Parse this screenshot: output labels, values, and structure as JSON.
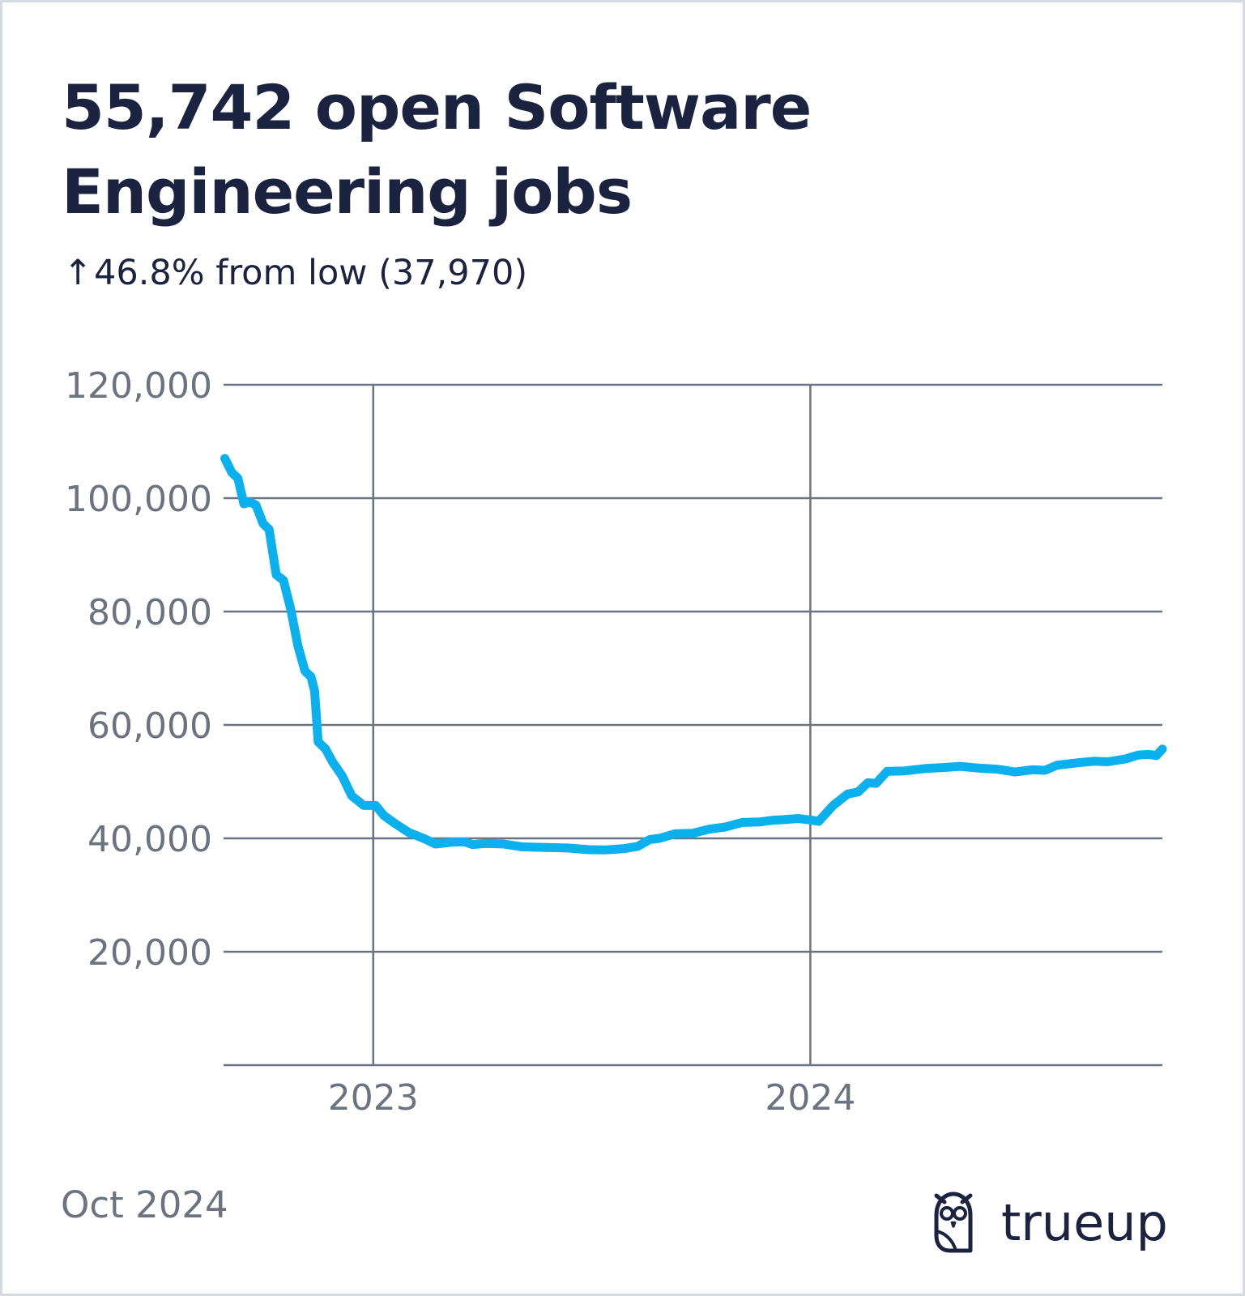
{
  "header": {
    "title": "55,742 open Software Engineering jobs",
    "subtitle_arrow": "↑",
    "subtitle": "46.8% from low (37,970)"
  },
  "footer": {
    "date": "Oct 2024",
    "brand": "trueup",
    "brand_icon": "owl-logo-icon"
  },
  "colors": {
    "line": "#0bb0ee",
    "grid": "#6b7280",
    "tick_text": "#6b7280",
    "title_text": "#1b2340"
  },
  "chart_data": {
    "type": "line",
    "title": "55,742 open Software Engineering jobs",
    "xlabel": "",
    "ylabel": "",
    "grid": true,
    "x_type": "date",
    "xlim": [
      "2022-08-29",
      "2024-10-21"
    ],
    "ylim": [
      0,
      120000
    ],
    "y_ticks": [
      20000,
      40000,
      60000,
      80000,
      100000,
      120000
    ],
    "y_tick_labels": [
      "20,000",
      "40,000",
      "60,000",
      "80,000",
      "100,000",
      "120,000"
    ],
    "x_ticks": [
      "2023-01-01",
      "2024-01-01"
    ],
    "x_tick_labels": [
      "2023",
      "2024"
    ],
    "series": [
      {
        "color": "#0bb0ee",
        "points": [
          [
            "2022-08-30",
            107000
          ],
          [
            "2022-09-05",
            104500
          ],
          [
            "2022-09-10",
            103500
          ],
          [
            "2022-09-15",
            99000
          ],
          [
            "2022-09-20",
            99300
          ],
          [
            "2022-09-25",
            98800
          ],
          [
            "2022-10-01",
            95500
          ],
          [
            "2022-10-06",
            94500
          ],
          [
            "2022-10-12",
            86500
          ],
          [
            "2022-10-18",
            85500
          ],
          [
            "2022-10-24",
            80500
          ],
          [
            "2022-10-30",
            74000
          ],
          [
            "2022-11-05",
            69500
          ],
          [
            "2022-11-10",
            68500
          ],
          [
            "2022-11-13",
            66000
          ],
          [
            "2022-11-16",
            57000
          ],
          [
            "2022-11-22",
            55800
          ],
          [
            "2022-11-28",
            53500
          ],
          [
            "2022-12-06",
            51000
          ],
          [
            "2022-12-14",
            47500
          ],
          [
            "2022-12-24",
            45800
          ],
          [
            "2023-01-03",
            45800
          ],
          [
            "2023-01-10",
            44000
          ],
          [
            "2023-01-20",
            42500
          ],
          [
            "2023-01-31",
            41000
          ],
          [
            "2023-02-12",
            40000
          ],
          [
            "2023-02-22",
            39000
          ],
          [
            "2023-03-06",
            39300
          ],
          [
            "2023-03-18",
            39400
          ],
          [
            "2023-03-25",
            38900
          ],
          [
            "2023-04-05",
            39100
          ],
          [
            "2023-04-20",
            39000
          ],
          [
            "2023-05-05",
            38500
          ],
          [
            "2023-05-25",
            38400
          ],
          [
            "2023-06-12",
            38300
          ],
          [
            "2023-06-30",
            38000
          ],
          [
            "2023-07-15",
            37970
          ],
          [
            "2023-07-30",
            38200
          ],
          [
            "2023-08-10",
            38600
          ],
          [
            "2023-08-20",
            39800
          ],
          [
            "2023-08-28",
            40000
          ],
          [
            "2023-09-10",
            40800
          ],
          [
            "2023-09-25",
            40900
          ],
          [
            "2023-10-08",
            41600
          ],
          [
            "2023-10-22",
            42000
          ],
          [
            "2023-11-05",
            42800
          ],
          [
            "2023-11-20",
            42900
          ],
          [
            "2023-12-01",
            43200
          ],
          [
            "2023-12-10",
            43300
          ],
          [
            "2023-12-22",
            43500
          ],
          [
            "2024-01-02",
            43200
          ],
          [
            "2024-01-08",
            43000
          ],
          [
            "2024-01-20",
            45800
          ],
          [
            "2024-02-01",
            47800
          ],
          [
            "2024-02-10",
            48200
          ],
          [
            "2024-02-18",
            49800
          ],
          [
            "2024-02-25",
            49700
          ],
          [
            "2024-03-05",
            51800
          ],
          [
            "2024-03-20",
            51900
          ],
          [
            "2024-04-05",
            52300
          ],
          [
            "2024-04-22",
            52500
          ],
          [
            "2024-05-05",
            52700
          ],
          [
            "2024-05-20",
            52400
          ],
          [
            "2024-06-05",
            52200
          ],
          [
            "2024-06-20",
            51700
          ],
          [
            "2024-07-05",
            52100
          ],
          [
            "2024-07-15",
            52000
          ],
          [
            "2024-07-25",
            52900
          ],
          [
            "2024-08-10",
            53300
          ],
          [
            "2024-08-25",
            53600
          ],
          [
            "2024-09-05",
            53500
          ],
          [
            "2024-09-20",
            54000
          ],
          [
            "2024-10-01",
            54700
          ],
          [
            "2024-10-10",
            54800
          ],
          [
            "2024-10-16",
            54600
          ],
          [
            "2024-10-21",
            55742
          ]
        ]
      }
    ]
  }
}
